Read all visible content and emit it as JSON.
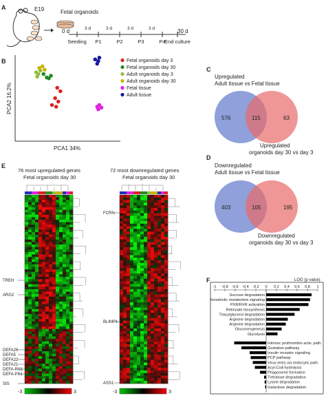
{
  "panel_labels": [
    "A",
    "B",
    "C",
    "D",
    "E",
    "F"
  ],
  "panelA": {
    "mouse_label": "E19",
    "dish_label": "Fetal organoids",
    "start_label": "0 d",
    "end_label": "30 d",
    "steps": [
      "Seeding",
      "P1",
      "P2",
      "P3",
      "P4",
      "End culture"
    ],
    "interval_label": "3 d"
  },
  "panelB": {
    "chart_data": {
      "type": "scatter",
      "xlabel": "PCA1 34%",
      "ylabel": "PCA2 16.2%",
      "series": [
        {
          "name": "Fetal organoids day 3",
          "color": "#e02020",
          "points": [
            [
              0.4,
              0.62
            ],
            [
              0.43,
              0.58
            ],
            [
              0.38,
              0.5
            ],
            [
              0.41,
              0.46
            ],
            [
              0.35,
              0.42
            ],
            [
              0.39,
              0.4
            ]
          ]
        },
        {
          "name": "Fetal organoids day 30",
          "color": "#228b22",
          "points": [
            [
              0.27,
              0.78
            ],
            [
              0.3,
              0.74
            ],
            [
              0.32,
              0.73
            ],
            [
              0.34,
              0.76
            ]
          ]
        },
        {
          "name": "Adult organoids day 3",
          "color": "#90c040",
          "points": [
            [
              0.2,
              0.8
            ],
            [
              0.22,
              0.78
            ],
            [
              0.24,
              0.82
            ],
            [
              0.21,
              0.75
            ]
          ]
        },
        {
          "name": "Adult organoids day 30",
          "color": "#c8b400",
          "points": [
            [
              0.23,
              0.85
            ],
            [
              0.26,
              0.87
            ],
            [
              0.28,
              0.83
            ]
          ]
        },
        {
          "name": "Fetal tissue",
          "color": "#e020e0",
          "points": [
            [
              0.78,
              0.4
            ],
            [
              0.8,
              0.42
            ],
            [
              0.82,
              0.39
            ],
            [
              0.79,
              0.37
            ]
          ]
        },
        {
          "name": "Adult tissue",
          "color": "#1a1aa0",
          "points": [
            [
              0.76,
              0.95
            ],
            [
              0.79,
              0.93
            ],
            [
              0.78,
              0.9
            ],
            [
              0.8,
              0.97
            ]
          ]
        }
      ]
    }
  },
  "panelC": {
    "title_line1": "Upregulated",
    "title_line2": "Adult tissue vs Fetal tissue",
    "left": "576",
    "center": "115",
    "right": "63",
    "bottom_line1": "Upregulated",
    "bottom_line2": "organoids day 30 vs day 3"
  },
  "panelD": {
    "title_line1": "Downregulated",
    "title_line2": "Adult tissue vs Fetal tissue",
    "left": "403",
    "center": "105",
    "right": "195",
    "bottom_line1": "Downregulated",
    "bottom_line2": "organoids day 30 vs day 3"
  },
  "panelE": {
    "left_title1": "76 most upregulated genes",
    "left_title2": "Fetal organoids day 30",
    "right_title1": "72 most downregulated genes",
    "right_title2": "Fetal organoids day 30",
    "left_genes": [
      "TREH",
      "ARG2",
      "DEFA26",
      "DEFA5",
      "DEFA22",
      "DEFA21",
      "DEFA-RS1",
      "DEFA-PS1",
      "SIS"
    ],
    "right_genes": [
      "FCRN",
      "BLIMP1",
      "ASS1"
    ],
    "scale_min": "-3",
    "scale_max": "3"
  },
  "panelF": {
    "chart_data": {
      "type": "bar",
      "xlabel": "LOG (p value)",
      "xticks": [
        "-1",
        "-0.8",
        "-0.6",
        "-0.4",
        "-0.2",
        "0",
        "0.2",
        "0.4",
        "0.6",
        "0.8",
        "1"
      ],
      "xlim": [
        -1,
        1
      ],
      "categories": [
        "Sucrose degradation",
        "Xenobiotic metabolism signaling",
        "PXR/RXR activation",
        "Retinoate biosynthesis",
        "Triacylglycerol degradation",
        "Arginine degradation",
        "Arginine degradation",
        "Gluconeogenesis",
        "Glycolysis",
        "Intrinsic prothrombin activ. path.",
        "Gustation pathway",
        "Insulin receptor signaling",
        "PCP pathway",
        "Virus entry via endocytic path.",
        "Acyl-CoA hydrolysis",
        "Phagosome formation",
        "Trehalose degradation",
        "Lysine degradation",
        "Galactose degradation"
      ],
      "values": [
        0.88,
        0.85,
        0.82,
        0.65,
        0.55,
        0.42,
        0.38,
        0.3,
        0.22,
        -0.62,
        -0.48,
        -0.32,
        -0.3,
        -0.26,
        -0.22,
        -0.12,
        -0.04,
        -0.03,
        -0.02
      ]
    }
  }
}
